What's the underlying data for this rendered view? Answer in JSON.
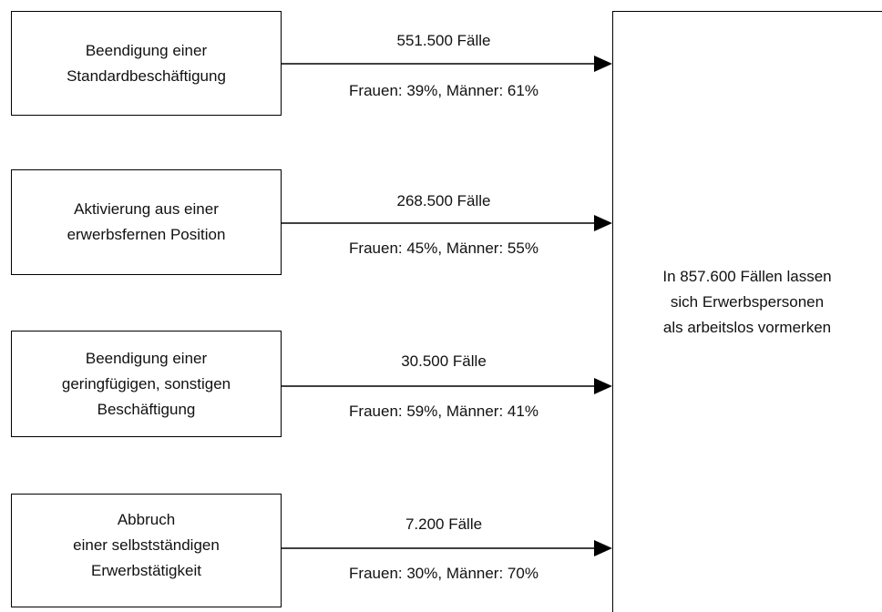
{
  "sources": [
    {
      "lines": [
        "Beendigung einer",
        "Standardbeschäftigung"
      ],
      "cases": "551.500 Fälle",
      "gender": "Frauen: 39%, Männer: 61%"
    },
    {
      "lines": [
        "Aktivierung aus einer",
        "erwerbsfernen Position"
      ],
      "cases": "268.500 Fälle",
      "gender": "Frauen: 45%, Männer: 55%"
    },
    {
      "lines": [
        "Beendigung einer",
        "geringfügigen, sonstigen",
        "Beschäftigung"
      ],
      "cases": "30.500 Fälle",
      "gender": "Frauen: 59%, Männer: 41%"
    },
    {
      "lines": [
        "Abbruch",
        "einer selbstständigen",
        "Erwerbstätigkeit"
      ],
      "cases": "7.200 Fälle",
      "gender": "Frauen: 30%, Männer: 70%"
    }
  ],
  "target": {
    "lines": [
      "In 857.600 Fällen lassen",
      "sich Erwerbspersonen",
      "als arbeitslos vormerken"
    ]
  }
}
